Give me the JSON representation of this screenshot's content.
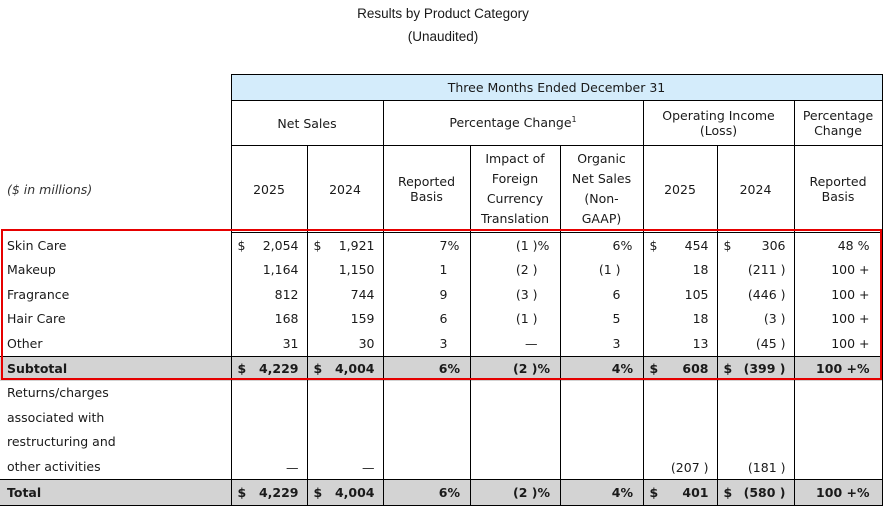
{
  "title": "Results by Product Category",
  "subtitle": "(Unaudited)",
  "table": {
    "period_header": "Three Months Ended December 31",
    "units_label": "($ in millions)",
    "group_headers": {
      "net_sales": "Net Sales",
      "percentage_change": "Percentage Change",
      "percentage_change_footnote": "1",
      "operating_income": "Operating Income (Loss)",
      "percentage_change_oi": "Percentage Change"
    },
    "column_headers": {
      "ns_2025": "2025",
      "ns_2024": "2024",
      "reported_basis": "Reported Basis",
      "fx_impact": "Impact of Foreign Currency Translation",
      "organic": "Organic Net Sales (Non-GAAP)",
      "oi_2025": "2025",
      "oi_2024": "2024",
      "oi_reported_basis": "Reported Basis"
    },
    "rows": [
      {
        "label": "Skin Care",
        "ns_2025_cur": "$",
        "ns_2025": "2,054",
        "ns_2024_cur": "$",
        "ns_2024": "1,921",
        "reported": "7",
        "reported_pct": "%",
        "fx": "(1 )",
        "fx_pct": "%",
        "organic": "6",
        "organic_pct": "%",
        "oi_2025_cur": "$",
        "oi_2025": "454",
        "oi_2024_cur": "$",
        "oi_2024": "306",
        "oi_change": "48 %"
      },
      {
        "label": "Makeup",
        "ns_2025": "1,164",
        "ns_2024": "1,150",
        "reported": "1",
        "fx": "(2 )",
        "organic": "(1 )",
        "oi_2025": "18",
        "oi_2024": "(211 )",
        "oi_change": "100 +"
      },
      {
        "label": "Fragrance",
        "ns_2025": "812",
        "ns_2024": "744",
        "reported": "9",
        "fx": "(3 )",
        "organic": "6",
        "oi_2025": "105",
        "oi_2024": "(446 )",
        "oi_change": "100 +"
      },
      {
        "label": "Hair Care",
        "ns_2025": "168",
        "ns_2024": "159",
        "reported": "6",
        "fx": "(1 )",
        "organic": "5",
        "oi_2025": "18",
        "oi_2024": "(3 )",
        "oi_change": "100 +"
      },
      {
        "label": "Other",
        "ns_2025": "31",
        "ns_2024": "30",
        "reported": "3",
        "fx": "—",
        "organic": "3",
        "oi_2025": "13",
        "oi_2024": "(45 )",
        "oi_change": "100 +"
      }
    ],
    "subtotal": {
      "label": "Subtotal",
      "ns_2025_cur": "$",
      "ns_2025": "4,229",
      "ns_2024_cur": "$",
      "ns_2024": "4,004",
      "reported": "6",
      "reported_pct": "%",
      "fx": "(2 )",
      "fx_pct": "%",
      "organic": "4",
      "organic_pct": "%",
      "oi_2025_cur": "$",
      "oi_2025": "608",
      "oi_2024_cur": "$",
      "oi_2024": "(399 )",
      "oi_change": "100 +%"
    },
    "returns": {
      "label_lines": [
        "Returns/charges",
        "associated with",
        "restructuring and",
        "other activities"
      ],
      "ns_2025": "—",
      "ns_2024": "—",
      "oi_2025": "(207 )",
      "oi_2024": "(181 )"
    },
    "total": {
      "label": "Total",
      "ns_2025_cur": "$",
      "ns_2025": "4,229",
      "ns_2024_cur": "$",
      "ns_2024": "4,004",
      "reported": "6",
      "reported_pct": "%",
      "fx": "(2 )",
      "fx_pct": "%",
      "organic": "4",
      "organic_pct": "%",
      "oi_2025_cur": "$",
      "oi_2025": "401",
      "oi_2024_cur": "$",
      "oi_2024": "(580 )",
      "oi_change": "100 +%"
    }
  },
  "colors": {
    "header_band": "#d4ecfb",
    "subtotal_fill": "#d3d3d3",
    "highlight_box": "#e60000"
  }
}
